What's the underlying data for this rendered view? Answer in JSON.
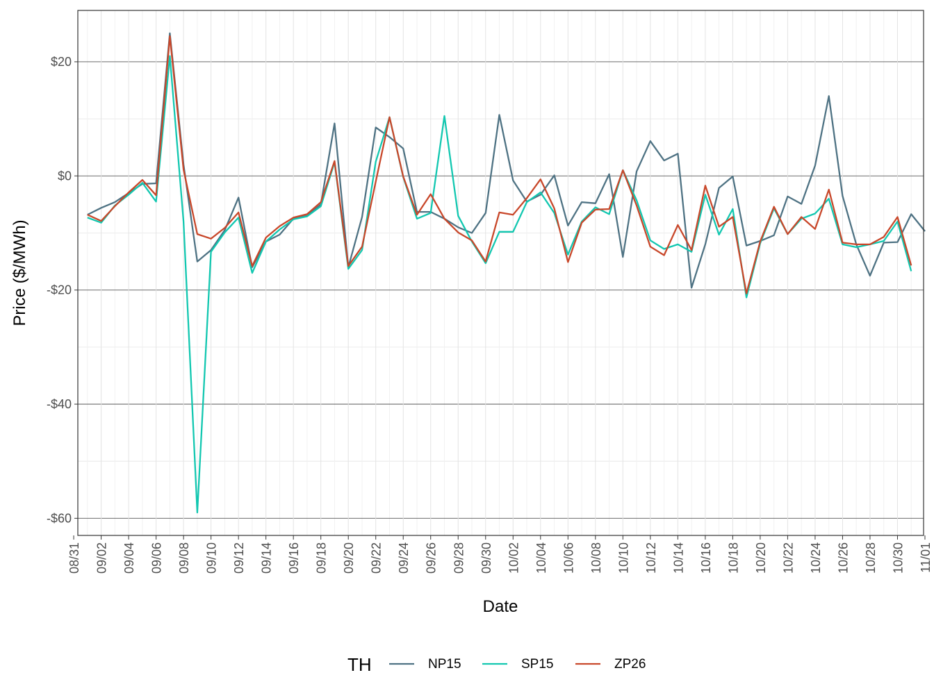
{
  "chart_data": {
    "type": "line",
    "title": "",
    "xlabel": "Date",
    "ylabel": "Price ($/MWh)",
    "ylim": [
      -63,
      29
    ],
    "y_ticks": [
      20,
      0,
      -20,
      -40,
      -60
    ],
    "y_tick_labels": [
      "$20",
      "$0",
      "-$20",
      "-$40",
      "-$60"
    ],
    "x_tick_labels": [
      "08/31",
      "09/02",
      "09/04",
      "09/06",
      "09/08",
      "09/10",
      "09/12",
      "09/14",
      "09/16",
      "09/18",
      "09/20",
      "09/22",
      "09/24",
      "09/26",
      "09/28",
      "09/30",
      "10/02",
      "10/04",
      "10/06",
      "10/08",
      "10/10",
      "10/12",
      "10/14",
      "10/16",
      "10/18",
      "10/20",
      "10/22",
      "10/24",
      "10/26",
      "10/28",
      "10/30",
      "11/01"
    ],
    "x_start_label": "09/01",
    "legend": {
      "title": "TH",
      "position": "bottom"
    },
    "series": [
      {
        "name": "NP15",
        "color": "#4e7283",
        "values": [
          -6.8,
          -5.6,
          -4.6,
          -3.0,
          -1.4,
          -1.3,
          25.0,
          2.0,
          -15.0,
          -13.0,
          -9.5,
          -3.8,
          -16.0,
          -11.5,
          -10.3,
          -7.5,
          -7.0,
          -5.0,
          9.2,
          -16.0,
          -7.2,
          8.5,
          6.8,
          4.8,
          -6.3,
          -6.3,
          -7.5,
          -9.0,
          -10.0,
          -6.5,
          10.7,
          -0.8,
          -4.5,
          -3.3,
          0.1,
          -8.7,
          -4.6,
          -4.8,
          0.3,
          -14.2,
          0.8,
          6.1,
          2.7,
          3.9,
          -19.6,
          -12.0,
          -2.1,
          -0.1,
          -12.2,
          -11.4,
          -10.4,
          -3.6,
          -4.9,
          1.8,
          14.0,
          -3.5,
          -12.0,
          -17.5,
          -11.7,
          -11.6,
          -6.7,
          -9.7
        ]
      },
      {
        "name": "SP15",
        "color": "#12c7b0",
        "values": [
          -7.3,
          -8.2,
          -5.2,
          -3.3,
          -1.2,
          -4.5,
          21.0,
          -8.0,
          -59.0,
          -13.3,
          -9.9,
          -7.3,
          -17.0,
          -11.5,
          -9.4,
          -7.6,
          -7.1,
          -5.3,
          2.4,
          -16.3,
          -13.0,
          2.5,
          10.3,
          -0.2,
          -7.5,
          -6.5,
          10.5,
          -7.0,
          -11.5,
          -15.3,
          -9.8,
          -9.8,
          -4.6,
          -2.9,
          -6.5,
          -13.8,
          -8.0,
          -5.5,
          -6.7,
          1.0,
          -4.3,
          -11.3,
          -12.8,
          -12.0,
          -13.3,
          -3.3,
          -10.3,
          -5.8,
          -21.3,
          -11.8,
          -5.7,
          -10.2,
          -7.5,
          -6.6,
          -4.0,
          -12.0,
          -12.5,
          -12.0,
          -11.4,
          -8.0,
          -16.7
        ]
      },
      {
        "name": "ZP26",
        "color": "#c8472a",
        "values": [
          -6.8,
          -7.9,
          -5.3,
          -2.9,
          -0.7,
          -3.4,
          24.5,
          1.1,
          -10.2,
          -11.0,
          -9.1,
          -6.4,
          -15.8,
          -10.8,
          -8.8,
          -7.3,
          -6.7,
          -4.6,
          2.6,
          -15.8,
          -12.4,
          -1.0,
          10.3,
          -0.1,
          -6.8,
          -3.2,
          -7.5,
          -9.9,
          -11.3,
          -15.0,
          -6.4,
          -6.8,
          -3.9,
          -0.6,
          -5.7,
          -15.1,
          -8.2,
          -5.9,
          -5.8,
          1.0,
          -5.2,
          -12.4,
          -13.9,
          -8.6,
          -13.0,
          -1.7,
          -8.9,
          -7.2,
          -20.6,
          -11.5,
          -5.4,
          -10.2,
          -7.2,
          -9.3,
          -2.4,
          -11.7,
          -12.0,
          -12.0,
          -10.7,
          -7.2,
          -15.7
        ]
      }
    ]
  }
}
